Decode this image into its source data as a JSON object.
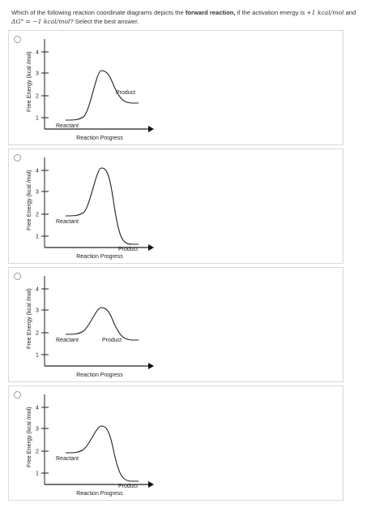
{
  "question": {
    "part1": "Which of the following reaction coordinate diagrams depicts the ",
    "bold": "forward reaction,",
    "part2": " if the activation energy is ",
    "ea_value": "+1 kcal/mol",
    "part3": " and",
    "dg_symbol": "ΔG°",
    "dg_value": "= −1 kcal/mol",
    "part4": "? Select the best answer."
  },
  "options": [
    {
      "y_label": "Free Energy (kcal /mol)",
      "x_label": "Reaction Progress",
      "ticks": [
        "4",
        "3",
        "2",
        "1"
      ],
      "reactant": "Reactant",
      "product": "Product",
      "chart_data": {
        "type": "line",
        "reactant_energy": 1,
        "peak_energy": 3,
        "product_energy": 2,
        "ylim": [
          1,
          4
        ]
      }
    },
    {
      "y_label": "Free Energy (kcal /mol)",
      "x_label": "Reaction Progress",
      "ticks": [
        "4",
        "3",
        "2",
        "1"
      ],
      "reactant": "Reactant",
      "product": "Product",
      "chart_data": {
        "type": "line",
        "reactant_energy": 2,
        "peak_energy": 4,
        "product_energy": 1,
        "ylim": [
          1,
          4
        ]
      }
    },
    {
      "y_label": "Free Energy (kcal /mol)",
      "x_label": "Reaction Progress",
      "ticks": [
        "4",
        "3",
        "2",
        "1"
      ],
      "reactant": "Reactant",
      "product": "Product",
      "chart_data": {
        "type": "line",
        "reactant_energy": 2,
        "peak_energy": 3,
        "product_energy": 2,
        "ylim": [
          1,
          4
        ]
      }
    },
    {
      "y_label": "Free Energy (kcal /mol)",
      "x_label": "Reaction Progress",
      "ticks": [
        "4",
        "3",
        "2",
        "1"
      ],
      "reactant": "Reactant",
      "product": "Product",
      "chart_data": {
        "type": "line",
        "reactant_energy": 2,
        "peak_energy": 3,
        "product_energy": 1,
        "ylim": [
          1,
          4
        ]
      }
    }
  ]
}
